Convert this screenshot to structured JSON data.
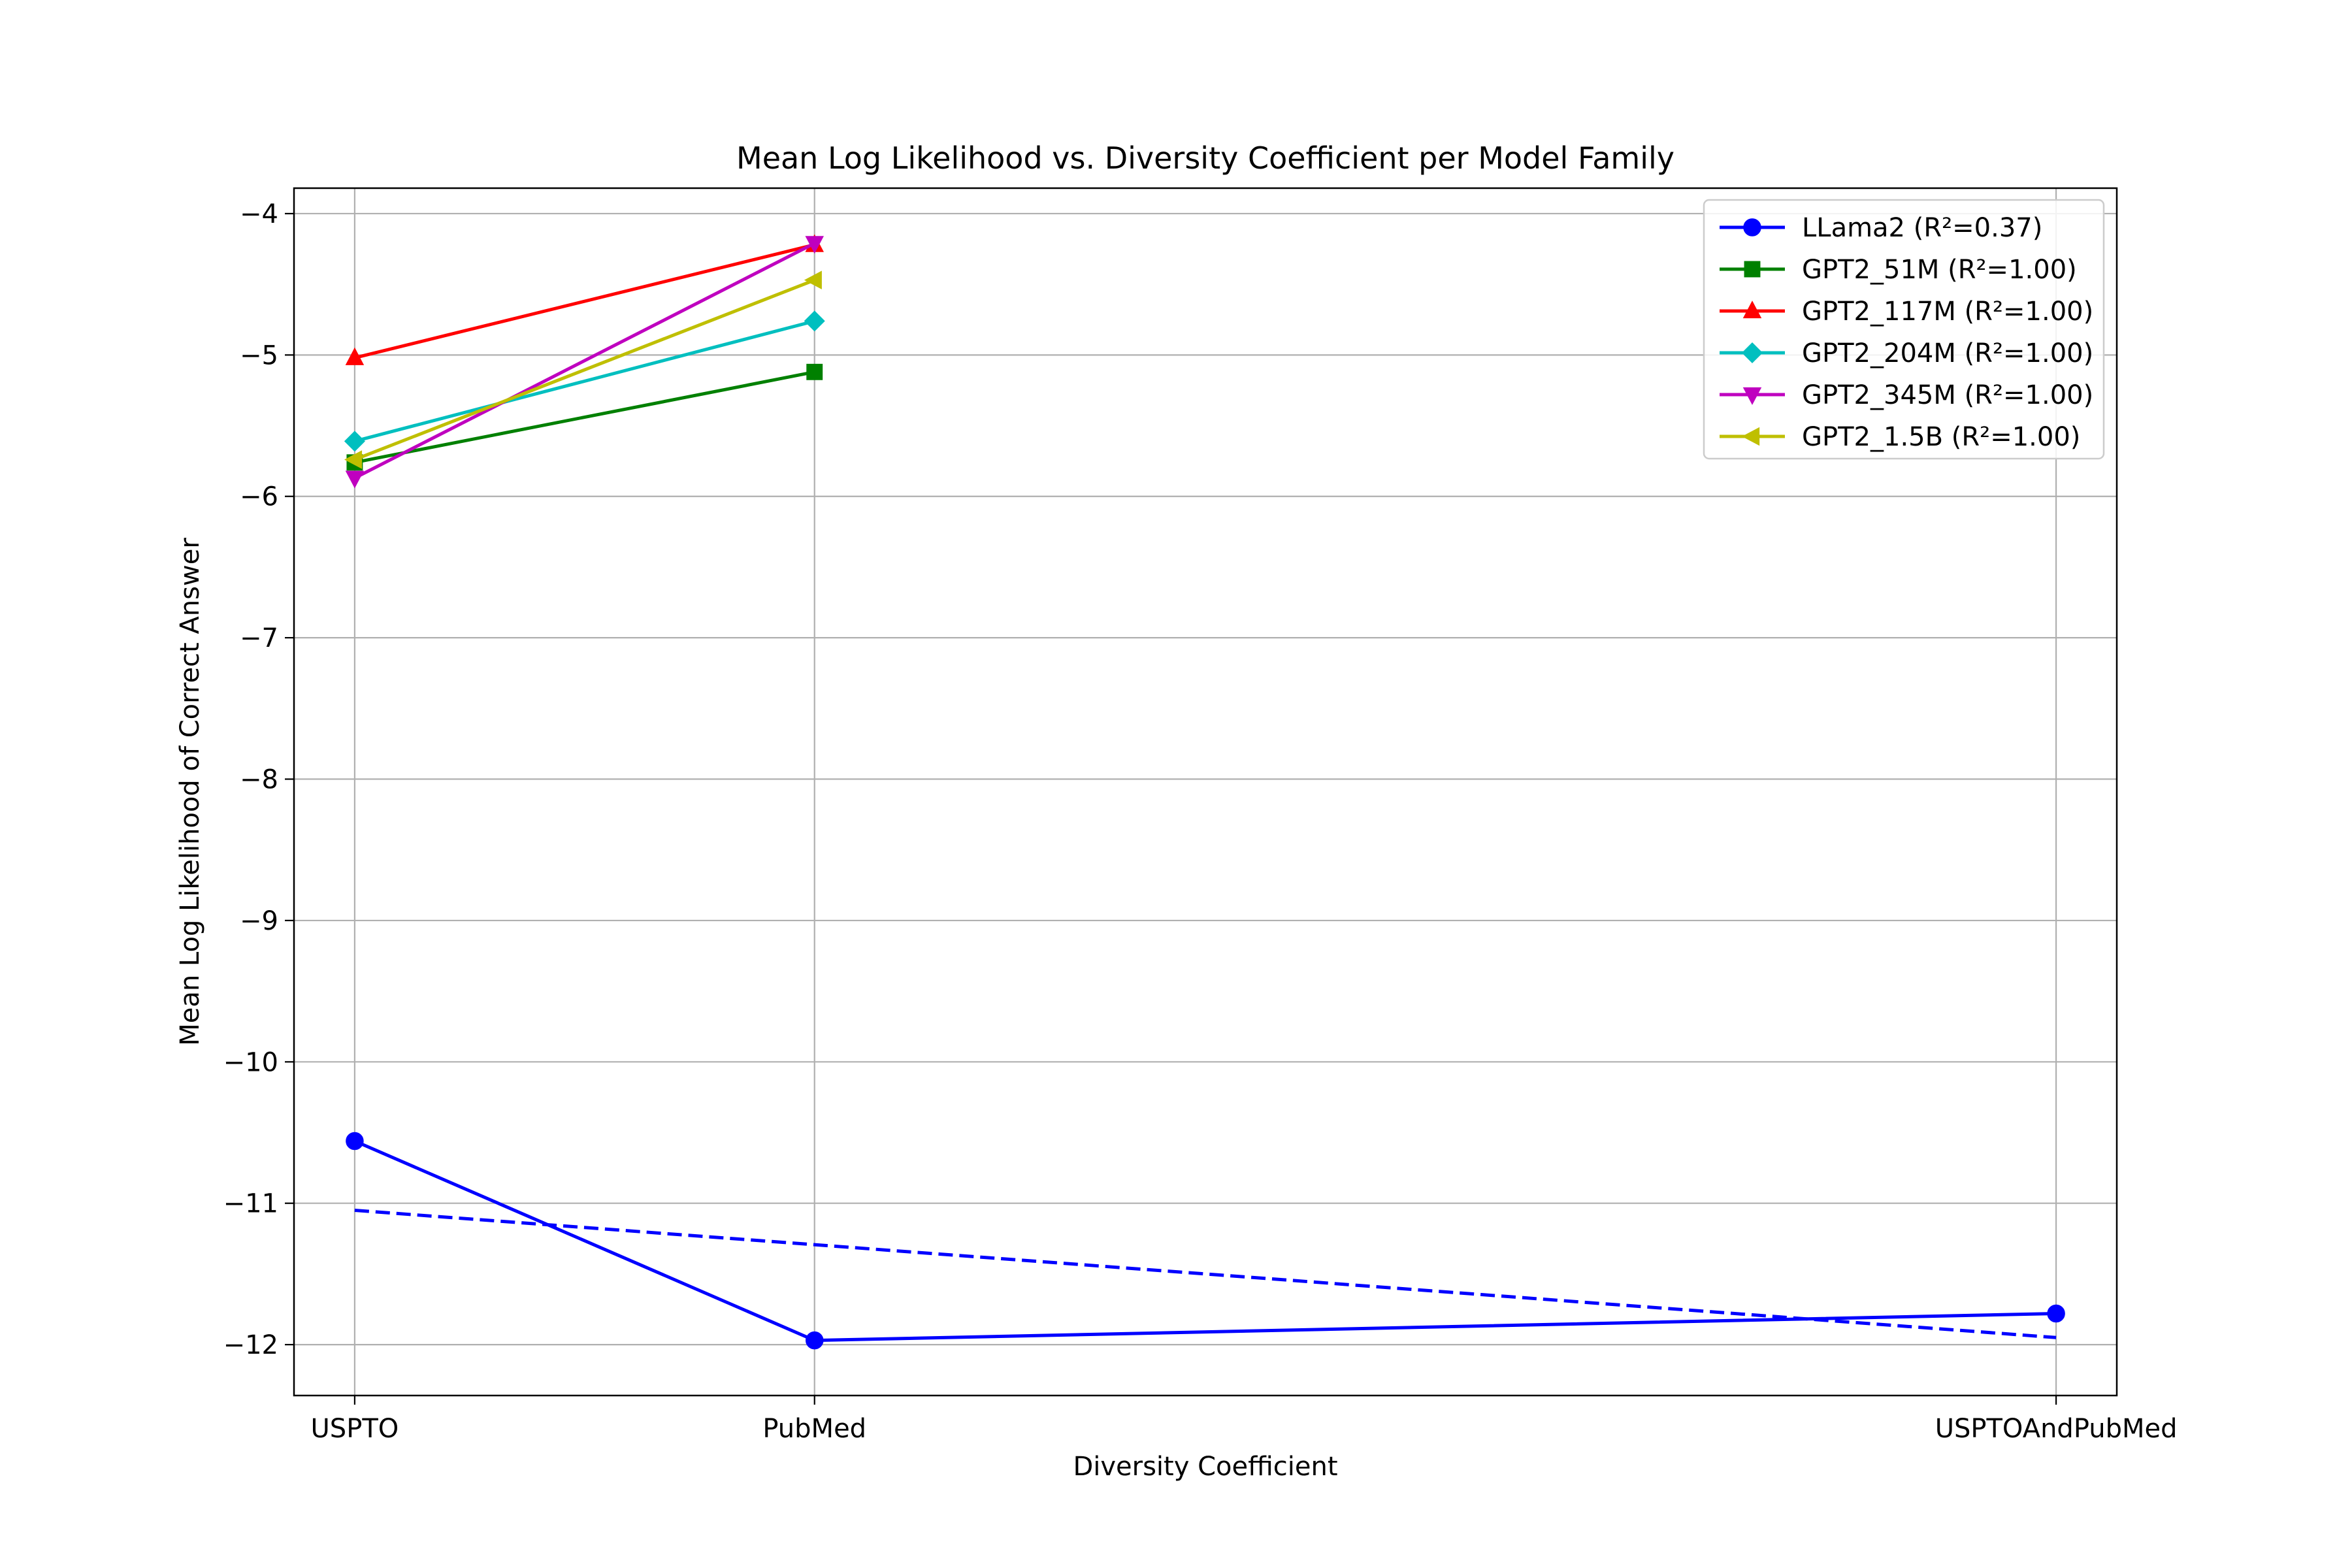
{
  "chart_data": {
    "type": "line",
    "title": "Mean Log Likelihood vs. Diversity Coefficient per Model Family",
    "xlabel": "Diversity Coefficient",
    "ylabel": "Mean Log Likelihood of Correct Answer",
    "x_tick_labels": [
      "USPTO",
      "PubMed",
      "USPTOAndPubMed"
    ],
    "x_tick_positions": [
      0.04,
      0.09,
      0.225
    ],
    "xlim": [
      0.0334,
      0.2316
    ],
    "ylim": [
      -12.36,
      -3.82
    ],
    "y_ticks": [
      -4,
      -5,
      -6,
      -7,
      -8,
      -9,
      -10,
      -11,
      -12
    ],
    "y_tick_labels": [
      "−4",
      "−5",
      "−6",
      "−7",
      "−8",
      "−9",
      "−10",
      "−11",
      "−12"
    ],
    "grid": true,
    "legend_position": "upper-right",
    "series": [
      {
        "name": "LLama2 (R²=0.37)",
        "color": "#0000ff",
        "marker": "circle",
        "x": [
          0.04,
          0.09,
          0.225
        ],
        "y": [
          -10.56,
          -11.97,
          -11.78
        ]
      },
      {
        "name": "GPT2_51M (R²=1.00)",
        "color": "#008000",
        "marker": "square",
        "x": [
          0.04,
          0.09
        ],
        "y": [
          -5.76,
          -5.12
        ]
      },
      {
        "name": "GPT2_117M (R²=1.00)",
        "color": "#ff0000",
        "marker": "triangle-up",
        "x": [
          0.04,
          0.09
        ],
        "y": [
          -5.02,
          -4.22
        ]
      },
      {
        "name": "GPT2_204M (R²=1.00)",
        "color": "#00bfbf",
        "marker": "diamond",
        "x": [
          0.04,
          0.09
        ],
        "y": [
          -5.61,
          -4.76
        ]
      },
      {
        "name": "GPT2_345M (R²=1.00)",
        "color": "#bf00bf",
        "marker": "triangle-down",
        "x": [
          0.04,
          0.09
        ],
        "y": [
          -5.87,
          -4.21
        ]
      },
      {
        "name": "GPT2_1.5B (R²=1.00)",
        "color": "#bfbf00",
        "marker": "triangle-left",
        "x": [
          0.04,
          0.09
        ],
        "y": [
          -5.74,
          -4.47
        ]
      }
    ],
    "trend_lines": [
      {
        "color": "#0000ff",
        "style": "dashed",
        "x": [
          0.04,
          0.225
        ],
        "y": [
          -11.05,
          -11.95
        ]
      }
    ]
  }
}
